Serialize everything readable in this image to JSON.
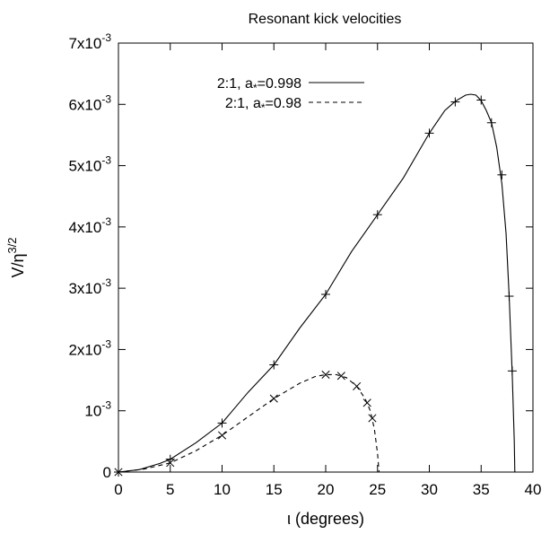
{
  "chart_data": {
    "type": "line",
    "title": "Resonant kick velocities",
    "xlabel": "ι (degrees)",
    "ylabel": {
      "base": "V/η",
      "sup": "3/2"
    },
    "xlim": [
      0,
      40
    ],
    "ylim": [
      0,
      0.007
    ],
    "x_ticks": [
      0,
      5,
      10,
      15,
      20,
      25,
      30,
      35,
      40
    ],
    "y_ticks": [
      {
        "value": 0,
        "mant": "0",
        "exp": ""
      },
      {
        "value": 0.001,
        "mant": "10",
        "exp": "-3"
      },
      {
        "value": 0.002,
        "mant": "2x10",
        "exp": "-3"
      },
      {
        "value": 0.003,
        "mant": "3x10",
        "exp": "-3"
      },
      {
        "value": 0.004,
        "mant": "4x10",
        "exp": "-3"
      },
      {
        "value": 0.005,
        "mant": "5x10",
        "exp": "-3"
      },
      {
        "value": 0.006,
        "mant": "6x10",
        "exp": "-3"
      },
      {
        "value": 0.007,
        "mant": "7x10",
        "exp": "-3"
      }
    ],
    "grid": false,
    "legend_position": "top-left",
    "series": [
      {
        "name": "2:1, a*=0.998",
        "legend": {
          "pre": "2:1, a",
          "sub": "*",
          "post": "=0.998"
        },
        "line_style": "solid",
        "marker": "plus",
        "color": "#000000",
        "curve": [
          [
            0,
            0
          ],
          [
            2,
            4e-05
          ],
          [
            4,
            0.00014
          ],
          [
            5,
            0.00021
          ],
          [
            7.5,
            0.00048
          ],
          [
            10,
            0.0008
          ],
          [
            12.5,
            0.0013
          ],
          [
            15,
            0.00175
          ],
          [
            17.5,
            0.00235
          ],
          [
            20,
            0.0029
          ],
          [
            22.5,
            0.0036
          ],
          [
            25,
            0.0042
          ],
          [
            27.5,
            0.0048
          ],
          [
            30,
            0.00553
          ],
          [
            31.5,
            0.0059
          ],
          [
            32.5,
            0.00605
          ],
          [
            33.5,
            0.00615
          ],
          [
            34,
            0.006165
          ],
          [
            34.5,
            0.00615
          ],
          [
            35,
            0.00606
          ],
          [
            35.5,
            0.0059
          ],
          [
            36,
            0.0057
          ],
          [
            36.5,
            0.0053
          ],
          [
            37,
            0.0047
          ],
          [
            37.4,
            0.0039
          ],
          [
            37.7,
            0.0029
          ],
          [
            38,
            0.0016
          ],
          [
            38.2,
            0.0005
          ],
          [
            38.25,
            0
          ]
        ],
        "points": [
          [
            0,
            0
          ],
          [
            5,
            0.00021
          ],
          [
            10,
            0.0008
          ],
          [
            15,
            0.00175
          ],
          [
            20,
            0.0029
          ],
          [
            25,
            0.0042
          ],
          [
            30,
            0.00553
          ],
          [
            32.5,
            0.00604
          ],
          [
            35,
            0.00607
          ],
          [
            36,
            0.0057
          ],
          [
            37,
            0.00485
          ],
          [
            37.7,
            0.00287
          ],
          [
            38,
            0.00165
          ]
        ]
      },
      {
        "name": "2:1, a*=0.98",
        "legend": {
          "pre": "2:1, a",
          "sub": "*",
          "post": "=0.98"
        },
        "line_style": "dashed",
        "marker": "cross",
        "color": "#000000",
        "curve": [
          [
            0,
            0
          ],
          [
            2.5,
            5e-05
          ],
          [
            5,
            0.00015
          ],
          [
            7.5,
            0.00035
          ],
          [
            10,
            0.0006
          ],
          [
            12.5,
            0.0009
          ],
          [
            15,
            0.0012
          ],
          [
            17.5,
            0.00145
          ],
          [
            19,
            0.00156
          ],
          [
            20,
            0.00159
          ],
          [
            21,
            0.00159
          ],
          [
            22,
            0.00154
          ],
          [
            23,
            0.0014
          ],
          [
            23.8,
            0.0012
          ],
          [
            24.3,
            0.001
          ],
          [
            24.7,
            0.0007
          ],
          [
            25,
            0.0003
          ],
          [
            25.15,
            0
          ]
        ],
        "points": [
          [
            0,
            0
          ],
          [
            5,
            0.00015
          ],
          [
            10,
            0.0006
          ],
          [
            15,
            0.0012
          ],
          [
            20,
            0.00159
          ],
          [
            21.5,
            0.00157
          ],
          [
            23,
            0.0014
          ],
          [
            24,
            0.00113
          ],
          [
            24.5,
            0.00088
          ]
        ]
      }
    ]
  }
}
